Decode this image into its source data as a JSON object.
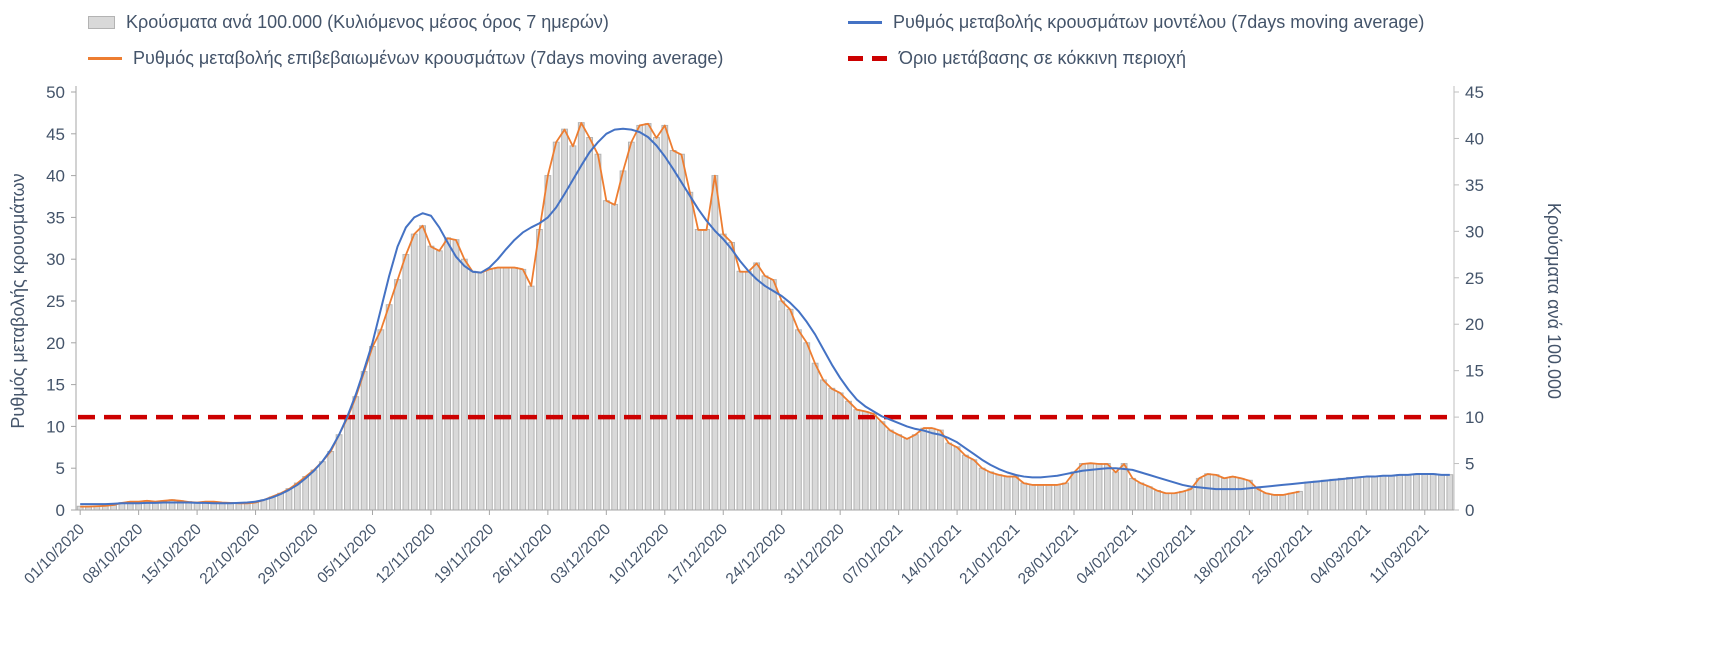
{
  "legend": {
    "items": [
      {
        "label": "Κρούσματα ανά 100.000 (Κυλιόμενος μέσος όρος 7 ημερών)"
      },
      {
        "label": "Ρυθμός μεταβολής κρουσμάτων μοντέλου (7days moving average)"
      },
      {
        "label": "Ρυθμός μεταβολής επιβεβαιωμένων κρουσμάτων (7days moving average)"
      },
      {
        "label": "Όριο μετάβασης σε κόκκινη περιοχή"
      }
    ]
  },
  "chart_data": {
    "type": "bar",
    "subtype": "combo-bar-and-lines-daily",
    "x_tick_labels": [
      "01/10/2020",
      "08/10/2020",
      "15/10/2020",
      "22/10/2020",
      "29/10/2020",
      "05/11/2020",
      "12/11/2020",
      "19/11/2020",
      "26/11/2020",
      "03/12/2020",
      "10/12/2020",
      "17/12/2020",
      "24/12/2020",
      "31/12/2020",
      "07/01/2021",
      "14/01/2021",
      "21/01/2021",
      "28/01/2021",
      "04/02/2021",
      "11/02/2021",
      "18/02/2021",
      "25/02/2021",
      "04/03/2021",
      "11/03/2021"
    ],
    "x_tick_day_indices": [
      0,
      7,
      14,
      21,
      28,
      35,
      42,
      49,
      56,
      63,
      70,
      77,
      84,
      91,
      98,
      105,
      112,
      119,
      126,
      133,
      140,
      147,
      154,
      161
    ],
    "left_axis": {
      "title": "Ρυθμός μεταβολής κρουσμάτων",
      "min": 0,
      "max": 50,
      "ticks": [
        0,
        5,
        10,
        15,
        20,
        25,
        30,
        35,
        40,
        45,
        50
      ]
    },
    "right_axis": {
      "title": "Κρούσματα ανά 100.000",
      "min": 0,
      "max": 45,
      "ticks": [
        0,
        5,
        10,
        15,
        20,
        25,
        30,
        35,
        40,
        45
      ]
    },
    "threshold": {
      "name": "Όριο μετάβασης σε κόκκινη περιοχή",
      "axis": "right",
      "value": 10,
      "color": "#cc0000"
    },
    "bars": {
      "name": "Κρούσματα ανά 100.000 (Κυλιόμενος μέσος όρος 7 ημερών)",
      "axis": "right",
      "fill": "#d9d9d9",
      "stroke": "#b3b3b3",
      "values": [
        0.4,
        0.4,
        0.4,
        0.5,
        0.5,
        0.8,
        0.9,
        0.9,
        1.0,
        0.9,
        1.0,
        1.1,
        1.0,
        0.9,
        0.8,
        0.9,
        0.9,
        0.8,
        0.8,
        0.7,
        0.7,
        0.8,
        1.1,
        1.4,
        1.8,
        2.3,
        2.9,
        3.6,
        4.3,
        5.2,
        6.3,
        8.1,
        9.9,
        12.2,
        14.9,
        17.6,
        19.4,
        22.1,
        24.8,
        27.5,
        29.7,
        30.6,
        28.4,
        27.9,
        29.3,
        29.1,
        27.0,
        25.7,
        25.6,
        25.9,
        26.1,
        26.1,
        26.1,
        25.9,
        24.1,
        30.2,
        36.0,
        39.6,
        41.0,
        39.2,
        41.7,
        40.1,
        38.3,
        33.3,
        32.9,
        36.5,
        39.6,
        41.4,
        41.6,
        40.1,
        41.4,
        38.7,
        38.3,
        34.2,
        30.2,
        30.2,
        36.0,
        29.7,
        28.8,
        25.7,
        25.7,
        26.6,
        25.2,
        24.8,
        22.5,
        21.6,
        19.4,
        18.0,
        15.8,
        14.0,
        13.1,
        12.6,
        11.7,
        10.8,
        10.6,
        10.4,
        9.5,
        8.6,
        8.1,
        7.7,
        8.1,
        8.8,
        8.8,
        8.6,
        7.2,
        6.8,
        5.9,
        5.4,
        4.5,
        4.1,
        3.8,
        3.6,
        3.6,
        2.9,
        2.7,
        2.7,
        2.7,
        2.7,
        2.9,
        4.1,
        5.0,
        5.0,
        5.0,
        5.0,
        4.1,
        5.0,
        3.4,
        2.9,
        2.5,
        2.1,
        1.8,
        1.8,
        2.0,
        2.3,
        3.4,
        3.9,
        3.8,
        3.4,
        3.6,
        3.4,
        3.2,
        2.3,
        1.8,
        1.6,
        1.6,
        1.8,
        2.0,
        3.0,
        3.1,
        3.2,
        3.3,
        3.4,
        3.5,
        3.5,
        3.6,
        3.6,
        3.7,
        3.7,
        3.8,
        3.8,
        3.8,
        3.9,
        3.9,
        3.8,
        3.8
      ]
    },
    "model_line": {
      "name": "Ρυθμός μεταβολής κρουσμάτων μοντέλου (7days moving average)",
      "axis": "left",
      "color": "#4472c4",
      "values": [
        0.7,
        0.7,
        0.7,
        0.7,
        0.75,
        0.8,
        0.8,
        0.8,
        0.85,
        0.85,
        0.9,
        0.9,
        0.9,
        0.9,
        0.85,
        0.85,
        0.8,
        0.8,
        0.8,
        0.85,
        0.9,
        1.0,
        1.2,
        1.5,
        1.9,
        2.4,
        3.0,
        3.8,
        4.7,
        5.8,
        7.2,
        9.0,
        11.2,
        13.8,
        16.8,
        20.0,
        24.0,
        28.0,
        31.5,
        33.8,
        35.0,
        35.5,
        35.2,
        33.8,
        32.0,
        30.3,
        29.2,
        28.5,
        28.4,
        29.0,
        30.0,
        31.2,
        32.3,
        33.2,
        33.8,
        34.3,
        35.0,
        36.2,
        37.8,
        39.5,
        41.2,
        42.8,
        44.0,
        45.0,
        45.5,
        45.6,
        45.5,
        45.2,
        44.6,
        43.6,
        42.3,
        40.8,
        39.2,
        37.6,
        36.0,
        34.6,
        33.4,
        32.4,
        31.2,
        29.8,
        28.6,
        27.6,
        26.8,
        26.2,
        25.6,
        24.8,
        23.8,
        22.5,
        21.0,
        19.2,
        17.4,
        15.8,
        14.4,
        13.2,
        12.4,
        11.8,
        11.2,
        10.8,
        10.4,
        10.0,
        9.7,
        9.5,
        9.2,
        9.0,
        8.6,
        8.1,
        7.4,
        6.7,
        6.0,
        5.4,
        4.9,
        4.5,
        4.2,
        4.0,
        3.9,
        3.9,
        4.0,
        4.1,
        4.3,
        4.5,
        4.7,
        4.8,
        4.9,
        5.0,
        5.0,
        4.9,
        4.8,
        4.5,
        4.2,
        3.9,
        3.6,
        3.3,
        3.0,
        2.8,
        2.7,
        2.6,
        2.5,
        2.5,
        2.5,
        2.5,
        2.6,
        2.7,
        2.8,
        2.9,
        3.0,
        3.1,
        3.2,
        3.3,
        3.4,
        3.5,
        3.6,
        3.7,
        3.8,
        3.9,
        4.0,
        4.0,
        4.1,
        4.1,
        4.2,
        4.2,
        4.3,
        4.3,
        4.3,
        4.2,
        4.2
      ]
    },
    "confirmed_line": {
      "name": "Ρυθμός μεταβολής επιβεβαιωμένων κρουσμάτων (7days moving average)",
      "axis": "left",
      "color": "#ed7d31",
      "values": [
        0.4,
        0.4,
        0.45,
        0.5,
        0.6,
        0.85,
        1.0,
        1.0,
        1.1,
        1.0,
        1.1,
        1.2,
        1.1,
        0.95,
        0.9,
        1.0,
        1.0,
        0.9,
        0.85,
        0.8,
        0.8,
        0.9,
        1.2,
        1.6,
        2.0,
        2.5,
        3.2,
        4.0,
        4.8,
        5.8,
        7.0,
        9.0,
        11.0,
        13.5,
        16.5,
        19.5,
        21.5,
        24.5,
        27.5,
        30.5,
        33.0,
        34.0,
        31.5,
        31.0,
        32.5,
        32.3,
        30.0,
        28.5,
        28.4,
        28.8,
        29.0,
        29.0,
        29.0,
        28.8,
        26.8,
        33.5,
        40.0,
        44.0,
        45.5,
        43.5,
        46.3,
        44.5,
        42.5,
        37.0,
        36.5,
        40.5,
        44.0,
        46.0,
        46.2,
        44.5,
        46.0,
        43.0,
        42.5,
        38.0,
        33.5,
        33.5,
        40.0,
        33.0,
        32.0,
        28.5,
        28.5,
        29.5,
        28.0,
        27.5,
        25.0,
        24.0,
        21.5,
        20.0,
        17.5,
        15.5,
        14.5,
        14.0,
        13.0,
        12.0,
        11.8,
        11.5,
        10.5,
        9.5,
        9.0,
        8.5,
        9.0,
        9.8,
        9.8,
        9.5,
        8.0,
        7.5,
        6.5,
        6.0,
        5.0,
        4.5,
        4.2,
        4.0,
        4.0,
        3.2,
        3.0,
        3.0,
        3.0,
        3.0,
        3.2,
        4.5,
        5.5,
        5.6,
        5.5,
        5.5,
        4.5,
        5.5,
        3.8,
        3.2,
        2.8,
        2.3,
        2.0,
        2.0,
        2.2,
        2.5,
        3.8,
        4.3,
        4.2,
        3.8,
        4.0,
        3.8,
        3.5,
        2.5,
        2.0,
        1.8,
        1.8,
        2.0,
        2.2,
        null,
        null,
        null,
        null,
        null,
        null,
        null,
        null,
        null,
        null,
        null,
        null,
        null,
        null,
        null,
        null,
        null,
        null
      ]
    },
    "text_color": "#44546a",
    "axis_line_color": "#a6a6a6"
  }
}
